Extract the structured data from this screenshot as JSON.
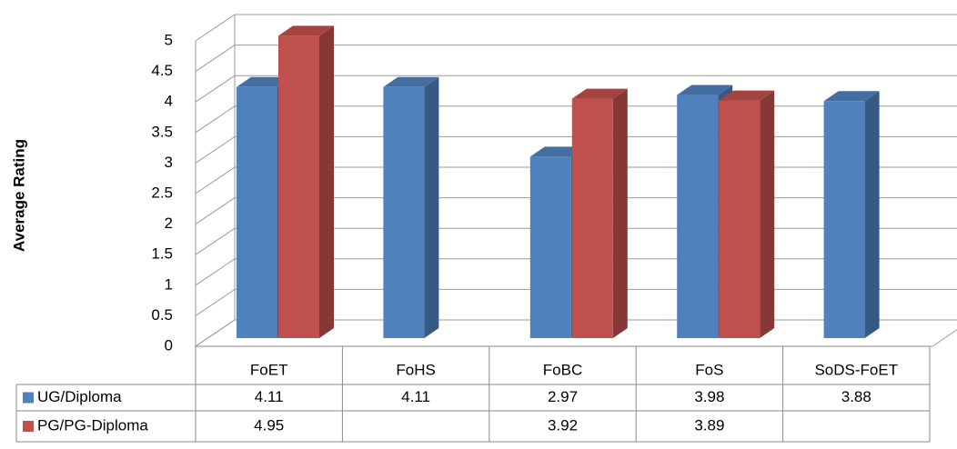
{
  "chart_data": {
    "type": "bar3d",
    "y_label": "Average Rating",
    "categories": [
      "FoET",
      "FoHS",
      "FoBC",
      "FoS",
      "SoDS-FoET"
    ],
    "series": [
      {
        "name": "UG/Diploma",
        "color": "#4f81bd",
        "values": [
          4.11,
          4.11,
          2.97,
          3.98,
          3.88
        ]
      },
      {
        "name": "PG/PG-Diploma",
        "color": "#c0504d",
        "values": [
          4.95,
          null,
          3.92,
          3.89,
          null
        ]
      }
    ],
    "ylim": [
      0,
      5
    ],
    "yticks": [
      0,
      0.5,
      1,
      1.5,
      2,
      2.5,
      3,
      3.5,
      4,
      4.5,
      5
    ],
    "grid": true,
    "data_table": true
  }
}
